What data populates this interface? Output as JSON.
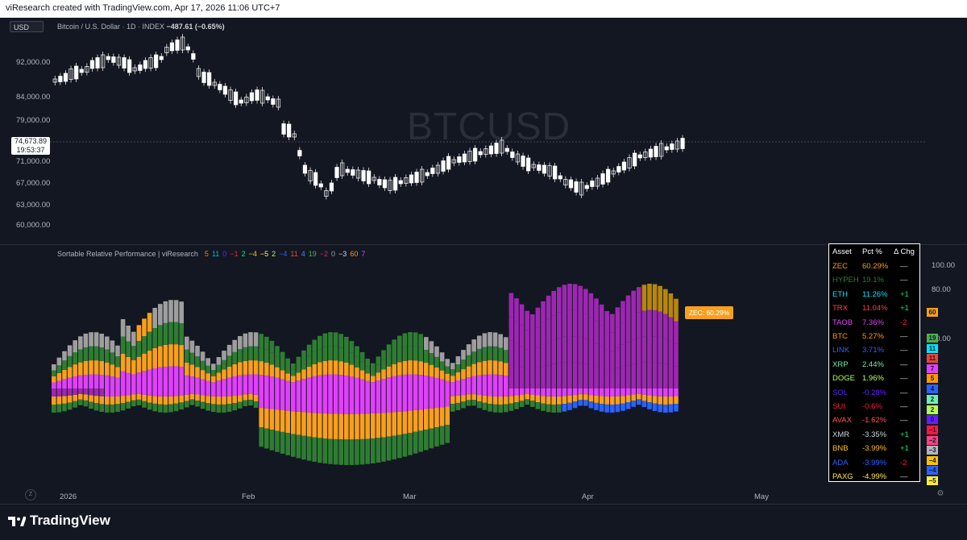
{
  "header": {
    "caption": "viResearch created with TradingView.com, Apr 17, 2026 11:06 UTC+7"
  },
  "main_chart": {
    "currency": "USD",
    "symbol_name": "Bitcoin / U.S. Dollar · 1D · INDEX",
    "change": "−487.61 (−0.65%)",
    "watermark": "BTCUSD",
    "last_price": "74,673.89",
    "countdown": "19:53:37",
    "price_ticks": [
      "92,000.00",
      "84,000.00",
      "79,000.00",
      "71,000.00",
      "67,000.00",
      "63,000.00",
      "60,000.00"
    ]
  },
  "indicator": {
    "title": "Sortable Relative Performance | viResearch",
    "values": [
      {
        "text": "5",
        "color": "#f57c00"
      },
      {
        "text": "11",
        "color": "#00bcd4"
      },
      {
        "text": "0",
        "color": "#651fff"
      },
      {
        "text": "−1",
        "color": "#ff1744"
      },
      {
        "text": "2",
        "color": "#00e676"
      },
      {
        "text": "−4",
        "color": "#ffc107"
      },
      {
        "text": "−5",
        "color": "#ffeb3b"
      },
      {
        "text": "2",
        "color": "#b2ff59"
      },
      {
        "text": "−4",
        "color": "#2962ff"
      },
      {
        "text": "11",
        "color": "#f44336"
      },
      {
        "text": "4",
        "color": "#448aff"
      },
      {
        "text": "19",
        "color": "#4caf50"
      },
      {
        "text": "−2",
        "color": "#e91e63"
      },
      {
        "text": "0",
        "color": "#9e9e9e"
      },
      {
        "text": "−3",
        "color": "#d1d4dc"
      },
      {
        "text": "60",
        "color": "#ff9800"
      },
      {
        "text": "7",
        "color": "#e040fb"
      }
    ],
    "right_ticks": [
      "100.00",
      "80.00",
      "40.00"
    ],
    "zec_label": "ZEC: 60.29%",
    "right_badges": [
      {
        "text": "60",
        "bg": "#f89f1b"
      },
      {
        "text": "19",
        "bg": "#4caf50"
      },
      {
        "text": "11",
        "bg": "#00e5ff"
      },
      {
        "text": "11",
        "bg": "#f44336"
      },
      {
        "text": "7",
        "bg": "#e040fb"
      },
      {
        "text": "5",
        "bg": "#ff9800"
      },
      {
        "text": "4",
        "bg": "#2962ff"
      },
      {
        "text": "2",
        "bg": "#69f0ae"
      },
      {
        "text": "2",
        "bg": "#b2ff59"
      },
      {
        "text": "0",
        "bg": "#651fff"
      },
      {
        "text": "−1",
        "bg": "#ff1744"
      },
      {
        "text": "−2",
        "bg": "#ff4081"
      },
      {
        "text": "−3",
        "bg": "#b2b5be"
      },
      {
        "text": "−4",
        "bg": "#ffc107"
      },
      {
        "text": "−4",
        "bg": "#2962ff"
      },
      {
        "text": "−5",
        "bg": "#ffeb3b"
      }
    ]
  },
  "table": {
    "headers": [
      "Asset",
      "Pct %",
      "Δ Chg"
    ],
    "rows": [
      {
        "asset": "ZEC",
        "pct": "60.29%",
        "chg": "—",
        "color": "#f89f1b",
        "chg_color": "#d1d4dc"
      },
      {
        "asset": "HYPEH",
        "pct": "19.1%",
        "chg": "—",
        "color": "#2e7d32",
        "chg_color": "#d1d4dc"
      },
      {
        "asset": "ETH",
        "pct": "11.26%",
        "chg": "+1",
        "color": "#00e5ff",
        "chg_color": "#00e676"
      },
      {
        "asset": "TRX",
        "pct": "11.04%",
        "chg": "+1",
        "color": "#f44336",
        "chg_color": "#00e676"
      },
      {
        "asset": "TAOB",
        "pct": "7.36%",
        "chg": "-2",
        "color": "#e040fb",
        "chg_color": "#ff1744"
      },
      {
        "asset": "BTC",
        "pct": "5.27%",
        "chg": "—",
        "color": "#ff9800",
        "chg_color": "#d1d4dc"
      },
      {
        "asset": "LINK",
        "pct": "3.71%",
        "chg": "—",
        "color": "#2962ff",
        "chg_color": "#d1d4dc"
      },
      {
        "asset": "XRP",
        "pct": "2.44%",
        "chg": "—",
        "color": "#69f0ae",
        "chg_color": "#d1d4dc"
      },
      {
        "asset": "DOGE",
        "pct": "1.96%",
        "chg": "—",
        "color": "#b2ff59",
        "chg_color": "#d1d4dc"
      },
      {
        "asset": "SOL",
        "pct": "-0.28%",
        "chg": "—",
        "color": "#651fff",
        "chg_color": "#d1d4dc"
      },
      {
        "asset": "SUI",
        "pct": "-0.6%",
        "chg": "—",
        "color": "#ff1744",
        "chg_color": "#d1d4dc"
      },
      {
        "asset": "AVAX",
        "pct": "-1.62%",
        "chg": "—",
        "color": "#ff5252",
        "chg_color": "#d1d4dc"
      },
      {
        "asset": "XMR",
        "pct": "-3.35%",
        "chg": "+1",
        "color": "#d1d4dc",
        "chg_color": "#00e676"
      },
      {
        "asset": "BNB",
        "pct": "-3.99%",
        "chg": "+1",
        "color": "#ffc107",
        "chg_color": "#00e676"
      },
      {
        "asset": "ADA",
        "pct": "-3.99%",
        "chg": "-2",
        "color": "#2962ff",
        "chg_color": "#ff1744"
      },
      {
        "asset": "PAXG",
        "pct": "-4.99%",
        "chg": "—",
        "color": "#ffeb3b",
        "chg_color": "#d1d4dc"
      }
    ]
  },
  "time_axis": {
    "labels": [
      "2026",
      "Feb",
      "Mar",
      "Apr",
      "May"
    ],
    "z_label": "Z"
  },
  "footer": {
    "brand": "TradingView"
  },
  "colors": {
    "background": "#131722",
    "candle_up": "#ffffff",
    "candle_down": "#ffffff",
    "accent": "#f89f1b"
  }
}
